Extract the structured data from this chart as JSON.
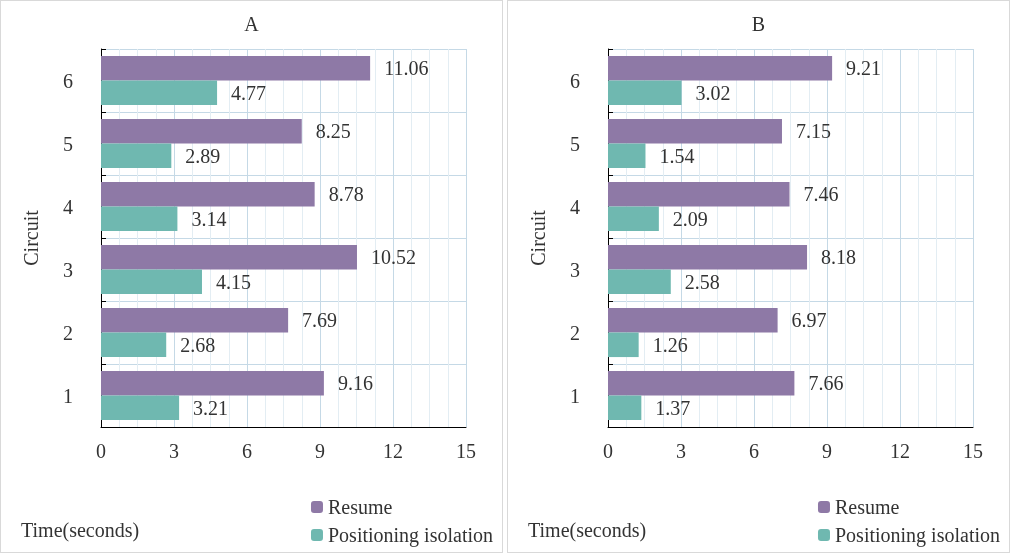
{
  "chart_data": [
    {
      "type": "bar",
      "orientation": "horizontal",
      "title": "A",
      "xlabel": "Time(seconds)",
      "ylabel": "Circuit",
      "categories": [
        "6",
        "5",
        "4",
        "3",
        "2",
        "1"
      ],
      "series": [
        {
          "name": "Resume",
          "color": "#8e79a6",
          "values": [
            11.06,
            8.25,
            8.78,
            10.52,
            7.69,
            9.16
          ]
        },
        {
          "name": "Positioning isolation",
          "color": "#6fb8b0",
          "values": [
            4.77,
            2.89,
            3.14,
            4.15,
            2.68,
            3.21
          ]
        }
      ],
      "xlim": [
        0,
        15
      ],
      "xticks": [
        0,
        3,
        6,
        9,
        12,
        15
      ],
      "grid": true,
      "legend": "bottom right",
      "data_labels": true
    },
    {
      "type": "bar",
      "orientation": "horizontal",
      "title": "B",
      "xlabel": "Time(seconds)",
      "ylabel": "Circuit",
      "categories": [
        "6",
        "5",
        "4",
        "3",
        "2",
        "1"
      ],
      "series": [
        {
          "name": "Resume",
          "color": "#8e79a6",
          "values": [
            9.21,
            7.15,
            7.46,
            8.18,
            6.97,
            7.66
          ]
        },
        {
          "name": "Positioning isolation",
          "color": "#6fb8b0",
          "values": [
            3.02,
            1.54,
            2.09,
            2.58,
            1.26,
            1.37
          ]
        }
      ],
      "xlim": [
        0,
        15
      ],
      "xticks": [
        0,
        3,
        6,
        9,
        12,
        15
      ],
      "grid": true,
      "legend": "bottom right",
      "data_labels": true
    }
  ]
}
